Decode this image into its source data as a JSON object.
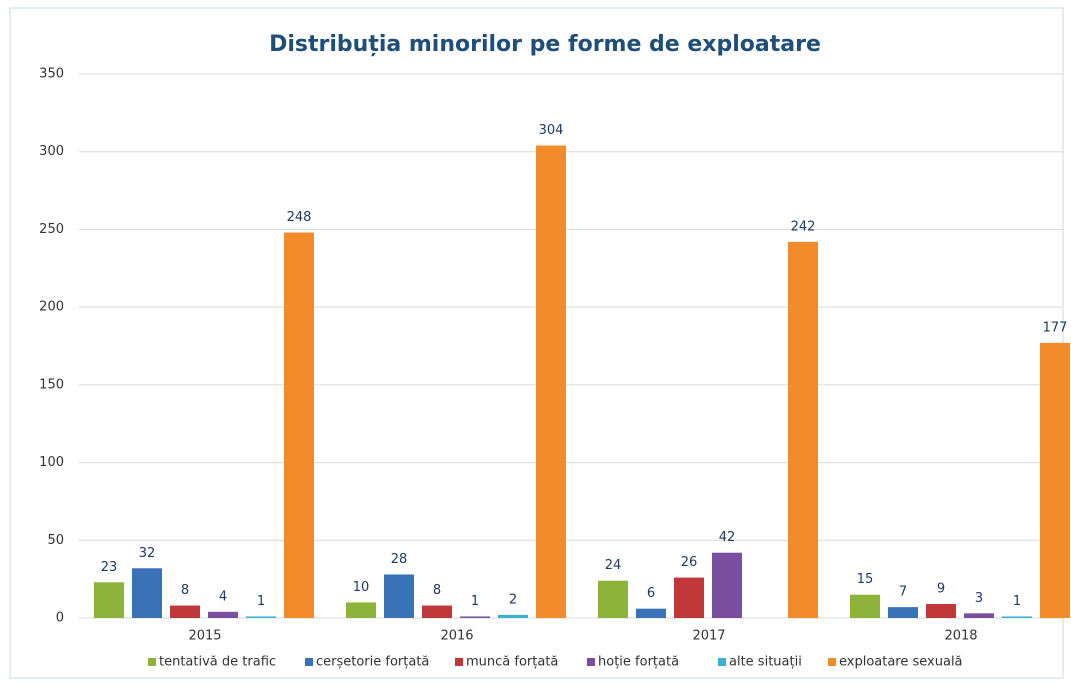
{
  "chart_data": {
    "type": "bar",
    "title": "Distribuția minorilor pe forme de exploatare",
    "categories": [
      "2015",
      "2016",
      "2017",
      "2018"
    ],
    "series": [
      {
        "name": "tentativă de trafic",
        "color": "#8db33a",
        "values": [
          23,
          10,
          24,
          15
        ]
      },
      {
        "name": "cerșetorie forțată",
        "color": "#3a72b8",
        "values": [
          32,
          28,
          6,
          7
        ]
      },
      {
        "name": "muncă forțată",
        "color": "#c0383a",
        "values": [
          8,
          8,
          26,
          9
        ]
      },
      {
        "name": "hoție forțată",
        "color": "#7a4fa0",
        "values": [
          4,
          1,
          42,
          3
        ]
      },
      {
        "name": "alte situații",
        "color": "#3bb0d0",
        "values": [
          1,
          2,
          null,
          1
        ]
      },
      {
        "name": "exploatare sexuală",
        "color": "#f28b2a",
        "values": [
          248,
          304,
          242,
          177
        ]
      }
    ],
    "ylim": [
      0,
      350
    ],
    "yticks": [
      0,
      50,
      100,
      150,
      200,
      250,
      300,
      350
    ],
    "grid": true,
    "legend": "bottom"
  }
}
